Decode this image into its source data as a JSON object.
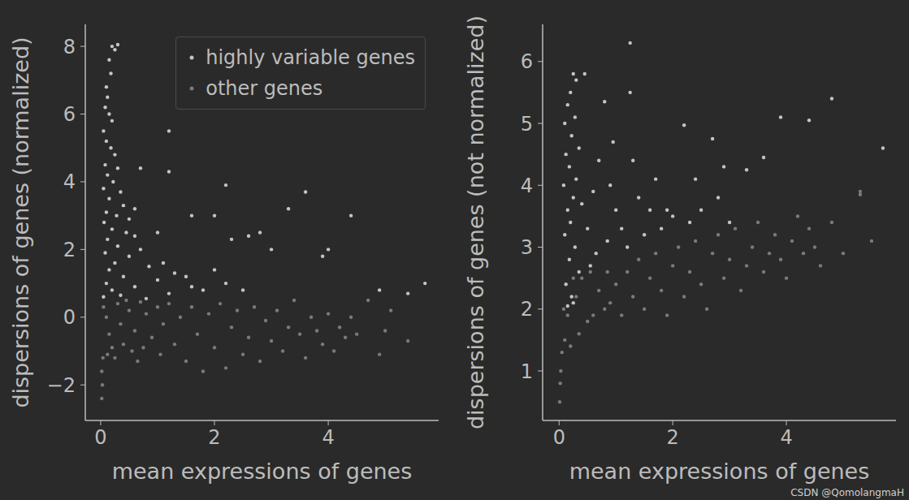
{
  "chart_data": [
    {
      "type": "scatter",
      "x_label": "mean expressions of genes",
      "y_label": "dispersions of genes (normalized)",
      "xlim": [
        -0.27,
        5.94
      ],
      "xticks": [
        0,
        2,
        4
      ],
      "ylim": [
        -3.05,
        8.65
      ],
      "yticks": [
        {
          "value": -2,
          "label": "−2"
        },
        0,
        2,
        4,
        6,
        8
      ],
      "grid": true,
      "legend": "upper right",
      "series": [
        {
          "name": "highly variable genes",
          "color": "#c4c4c4",
          "values": [
            [
              0.2,
              8.0
            ],
            [
              0.25,
              7.9
            ],
            [
              0.3,
              8.05
            ],
            [
              0.15,
              7.6
            ],
            [
              0.18,
              7.2
            ],
            [
              0.1,
              6.8
            ],
            [
              0.12,
              6.5
            ],
            [
              0.08,
              6.2
            ],
            [
              0.15,
              6.0
            ],
            [
              0.2,
              5.8
            ],
            [
              0.05,
              5.5
            ],
            [
              0.1,
              5.2
            ],
            [
              0.18,
              5.0
            ],
            [
              0.25,
              4.8
            ],
            [
              0.08,
              4.5
            ],
            [
              0.3,
              4.4
            ],
            [
              0.12,
              4.2
            ],
            [
              0.22,
              4.0
            ],
            [
              0.05,
              3.8
            ],
            [
              0.35,
              3.7
            ],
            [
              0.15,
              3.5
            ],
            [
              0.4,
              3.3
            ],
            [
              0.1,
              3.1
            ],
            [
              0.28,
              3.0
            ],
            [
              0.5,
              2.9
            ],
            [
              0.06,
              2.8
            ],
            [
              0.2,
              2.6
            ],
            [
              0.45,
              2.5
            ],
            [
              0.6,
              2.4
            ],
            [
              0.12,
              2.3
            ],
            [
              0.3,
              2.1
            ],
            [
              0.7,
              2.0
            ],
            [
              0.08,
              1.9
            ],
            [
              0.5,
              1.8
            ],
            [
              0.25,
              1.6
            ],
            [
              0.85,
              1.5
            ],
            [
              0.15,
              1.4
            ],
            [
              0.4,
              1.2
            ],
            [
              1.0,
              1.1
            ],
            [
              0.1,
              1.0
            ],
            [
              0.6,
              0.9
            ],
            [
              0.2,
              0.8
            ],
            [
              1.2,
              0.7
            ],
            [
              0.35,
              0.65
            ],
            [
              0.05,
              0.6
            ],
            [
              0.8,
              0.55
            ],
            [
              1.1,
              1.6
            ],
            [
              1.3,
              1.3
            ],
            [
              1.5,
              1.2
            ],
            [
              1.6,
              0.9
            ],
            [
              1.8,
              0.8
            ],
            [
              2.0,
              1.4
            ],
            [
              2.2,
              1.0
            ],
            [
              2.5,
              0.8
            ],
            [
              2.3,
              2.3
            ],
            [
              2.6,
              2.4
            ],
            [
              2.8,
              2.5
            ],
            [
              1.6,
              3.0
            ],
            [
              2.0,
              3.0
            ],
            [
              1.2,
              5.5
            ],
            [
              1.2,
              4.3
            ],
            [
              2.2,
              3.9
            ],
            [
              3.3,
              3.2
            ],
            [
              3.6,
              3.7
            ],
            [
              4.4,
              3.0
            ],
            [
              4.0,
              2.0
            ],
            [
              3.0,
              2.0
            ],
            [
              1.0,
              2.5
            ],
            [
              0.7,
              4.4
            ],
            [
              0.6,
              3.2
            ],
            [
              3.9,
              1.8
            ],
            [
              5.7,
              1.0
            ],
            [
              4.9,
              0.8
            ],
            [
              5.4,
              0.7
            ]
          ]
        },
        {
          "name": "other genes",
          "color": "#7a7a7a",
          "values": [
            [
              0.02,
              -2.4
            ],
            [
              0.03,
              -2.0
            ],
            [
              0.02,
              -1.6
            ],
            [
              0.04,
              -1.2
            ],
            [
              0.05,
              0.3
            ],
            [
              0.1,
              0.0
            ],
            [
              0.15,
              -0.5
            ],
            [
              0.2,
              -0.9
            ],
            [
              0.3,
              0.4
            ],
            [
              0.35,
              -0.2
            ],
            [
              0.4,
              -0.8
            ],
            [
              0.5,
              0.2
            ],
            [
              0.55,
              -1.0
            ],
            [
              0.6,
              -0.4
            ],
            [
              0.7,
              0.45
            ],
            [
              0.75,
              -0.9
            ],
            [
              0.8,
              0.1
            ],
            [
              0.9,
              -0.6
            ],
            [
              1.0,
              0.3
            ],
            [
              1.05,
              -1.1
            ],
            [
              1.1,
              -0.2
            ],
            [
              1.2,
              0.4
            ],
            [
              1.3,
              -0.8
            ],
            [
              1.4,
              0.0
            ],
            [
              1.5,
              -1.3
            ],
            [
              1.6,
              0.3
            ],
            [
              1.7,
              -0.5
            ],
            [
              1.8,
              -1.6
            ],
            [
              1.9,
              0.1
            ],
            [
              2.0,
              -0.9
            ],
            [
              2.1,
              0.4
            ],
            [
              2.2,
              -1.5
            ],
            [
              2.3,
              -0.3
            ],
            [
              2.4,
              0.2
            ],
            [
              2.5,
              -1.1
            ],
            [
              2.6,
              -0.6
            ],
            [
              2.7,
              0.3
            ],
            [
              2.8,
              -1.3
            ],
            [
              2.9,
              -0.1
            ],
            [
              3.0,
              -0.7
            ],
            [
              3.1,
              0.2
            ],
            [
              3.2,
              -1.0
            ],
            [
              3.3,
              -0.3
            ],
            [
              3.4,
              0.5
            ],
            [
              3.5,
              -0.5
            ],
            [
              3.6,
              -1.2
            ],
            [
              3.7,
              0.0
            ],
            [
              3.8,
              -0.4
            ],
            [
              3.9,
              -0.8
            ],
            [
              4.0,
              0.1
            ],
            [
              4.1,
              -1.0
            ],
            [
              4.2,
              -0.3
            ],
            [
              4.3,
              -0.6
            ],
            [
              4.4,
              0.0
            ],
            [
              4.5,
              -0.5
            ],
            [
              4.7,
              0.5
            ],
            [
              4.9,
              -1.1
            ],
            [
              5.0,
              -0.4
            ],
            [
              5.1,
              0.2
            ],
            [
              5.4,
              -0.7
            ],
            [
              0.25,
              -1.2
            ],
            [
              0.45,
              0.5
            ],
            [
              0.65,
              -1.3
            ],
            [
              0.12,
              -1.1
            ]
          ]
        }
      ]
    },
    {
      "type": "scatter",
      "x_label": "mean expressions of genes",
      "y_label": "dispersions of genes (not normalized)",
      "xlim": [
        -0.29,
        5.93
      ],
      "xticks": [
        0,
        2,
        4
      ],
      "ylim": [
        0.2,
        6.6
      ],
      "yticks": [
        1,
        2,
        3,
        4,
        5,
        6
      ],
      "grid": true,
      "series": [
        {
          "name": "highly variable genes",
          "color": "#c4c4c4",
          "values": [
            [
              0.25,
              5.8
            ],
            [
              0.3,
              5.7
            ],
            [
              0.45,
              5.8
            ],
            [
              0.2,
              5.5
            ],
            [
              0.15,
              5.3
            ],
            [
              0.28,
              5.1
            ],
            [
              0.1,
              5.0
            ],
            [
              0.22,
              4.8
            ],
            [
              0.35,
              4.6
            ],
            [
              0.12,
              4.5
            ],
            [
              0.18,
              4.3
            ],
            [
              0.3,
              4.1
            ],
            [
              0.08,
              4.0
            ],
            [
              0.25,
              3.8
            ],
            [
              0.4,
              3.7
            ],
            [
              0.15,
              3.6
            ],
            [
              0.2,
              3.4
            ],
            [
              0.5,
              3.3
            ],
            [
              0.1,
              3.2
            ],
            [
              0.28,
              3.0
            ],
            [
              0.18,
              2.8
            ],
            [
              0.35,
              2.6
            ],
            [
              0.12,
              2.4
            ],
            [
              0.22,
              2.2
            ],
            [
              0.15,
              2.05
            ],
            [
              0.25,
              2.1
            ],
            [
              0.6,
              3.9
            ],
            [
              0.7,
              4.4
            ],
            [
              0.8,
              5.35
            ],
            [
              0.9,
              4.0
            ],
            [
              1.0,
              3.6
            ],
            [
              0.65,
              2.9
            ],
            [
              0.85,
              3.1
            ],
            [
              1.1,
              3.3
            ],
            [
              1.2,
              3.0
            ],
            [
              1.3,
              4.4
            ],
            [
              1.25,
              6.3
            ],
            [
              1.25,
              5.5
            ],
            [
              1.4,
              3.8
            ],
            [
              1.5,
              3.2
            ],
            [
              1.6,
              3.6
            ],
            [
              1.7,
              4.1
            ],
            [
              1.8,
              3.3
            ],
            [
              1.9,
              3.6
            ],
            [
              2.0,
              3.5
            ],
            [
              2.2,
              4.97
            ],
            [
              2.3,
              3.4
            ],
            [
              2.4,
              4.1
            ],
            [
              2.5,
              3.6
            ],
            [
              2.7,
              4.75
            ],
            [
              2.8,
              3.8
            ],
            [
              2.9,
              4.3
            ],
            [
              3.0,
              3.4
            ],
            [
              3.3,
              4.25
            ],
            [
              3.6,
              4.45
            ],
            [
              3.9,
              5.1
            ],
            [
              4.4,
              5.05
            ],
            [
              4.8,
              5.4
            ],
            [
              5.7,
              4.6
            ],
            [
              0.95,
              4.7
            ],
            [
              0.55,
              2.7
            ]
          ]
        },
        {
          "name": "other genes",
          "color": "#7a7a7a",
          "values": [
            [
              0.01,
              0.5
            ],
            [
              0.02,
              0.8
            ],
            [
              0.03,
              1.0
            ],
            [
              0.05,
              1.3
            ],
            [
              0.1,
              1.5
            ],
            [
              0.15,
              1.9
            ],
            [
              0.2,
              1.4
            ],
            [
              0.3,
              2.2
            ],
            [
              0.35,
              1.6
            ],
            [
              0.4,
              2.5
            ],
            [
              0.5,
              1.8
            ],
            [
              0.55,
              2.6
            ],
            [
              0.6,
              1.9
            ],
            [
              0.7,
              2.3
            ],
            [
              0.8,
              2.0
            ],
            [
              0.85,
              2.6
            ],
            [
              0.9,
              2.1
            ],
            [
              1.0,
              2.4
            ],
            [
              1.1,
              1.9
            ],
            [
              1.2,
              2.6
            ],
            [
              1.3,
              2.2
            ],
            [
              1.4,
              2.8
            ],
            [
              1.5,
              2.0
            ],
            [
              1.6,
              2.5
            ],
            [
              1.7,
              2.9
            ],
            [
              1.8,
              2.3
            ],
            [
              1.9,
              1.9
            ],
            [
              2.0,
              2.7
            ],
            [
              2.1,
              3.0
            ],
            [
              2.2,
              2.2
            ],
            [
              2.3,
              2.6
            ],
            [
              2.4,
              3.1
            ],
            [
              2.5,
              2.4
            ],
            [
              2.6,
              2.0
            ],
            [
              2.7,
              2.9
            ],
            [
              2.8,
              3.2
            ],
            [
              2.9,
              2.5
            ],
            [
              3.0,
              2.8
            ],
            [
              3.1,
              3.3
            ],
            [
              3.2,
              2.3
            ],
            [
              3.3,
              2.7
            ],
            [
              3.4,
              3.0
            ],
            [
              3.5,
              3.4
            ],
            [
              3.6,
              2.6
            ],
            [
              3.7,
              2.9
            ],
            [
              3.8,
              3.2
            ],
            [
              3.9,
              2.8
            ],
            [
              4.0,
              2.5
            ],
            [
              4.1,
              3.1
            ],
            [
              4.2,
              3.5
            ],
            [
              4.3,
              2.9
            ],
            [
              4.4,
              3.3
            ],
            [
              4.5,
              3.0
            ],
            [
              4.6,
              2.7
            ],
            [
              4.8,
              3.4
            ],
            [
              5.0,
              2.9
            ],
            [
              5.3,
              3.9
            ],
            [
              5.3,
              3.85
            ],
            [
              5.5,
              3.1
            ],
            [
              0.08,
              2.0
            ],
            [
              0.25,
              2.5
            ]
          ]
        }
      ]
    }
  ],
  "watermark": "CSDN @QomolangmaH"
}
